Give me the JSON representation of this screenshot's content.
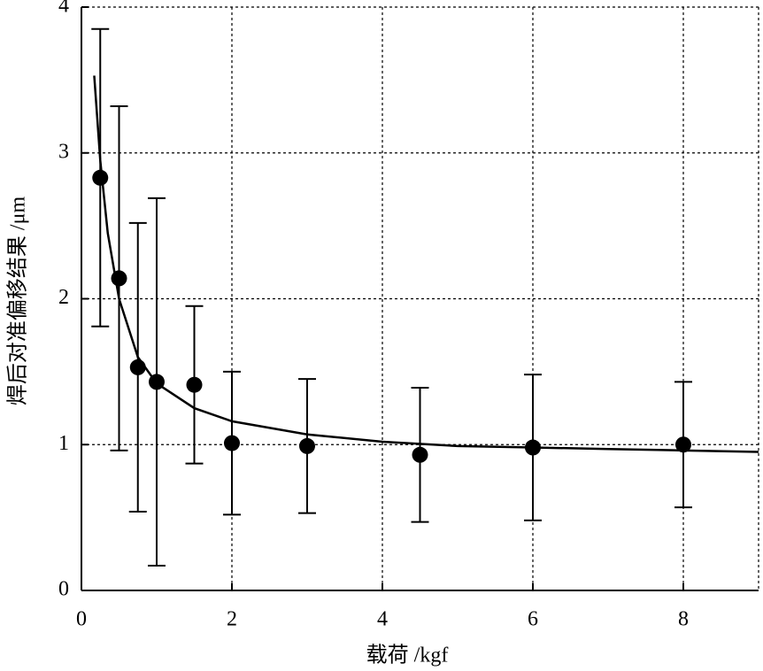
{
  "chart_data": {
    "type": "scatter",
    "x_label": "载荷 /kgf",
    "y_label": "焊后对准偏移结果 /μm",
    "x": [
      0.25,
      0.5,
      0.75,
      1,
      1.5,
      2,
      3,
      4.5,
      6,
      8
    ],
    "values": [
      2.83,
      2.14,
      1.53,
      1.43,
      1.41,
      1.01,
      0.99,
      0.93,
      0.98,
      1.0
    ],
    "errors": [
      1.02,
      1.18,
      0.99,
      1.26,
      0.54,
      0.49,
      0.46,
      0.46,
      0.5,
      0.43
    ],
    "color": "#000000",
    "fit": {
      "x": [
        0.17,
        0.25,
        0.35,
        0.5,
        0.75,
        1,
        1.5,
        2,
        3,
        4,
        5,
        6,
        7,
        8,
        9
      ],
      "y": [
        3.53,
        2.95,
        2.45,
        2.0,
        1.6,
        1.42,
        1.25,
        1.16,
        1.07,
        1.02,
        0.99,
        0.98,
        0.97,
        0.96,
        0.95
      ]
    },
    "xlim": [
      0,
      9
    ],
    "ylim": [
      0,
      4
    ],
    "xticks": [
      0,
      2,
      4,
      6,
      8
    ],
    "yticks": [
      0,
      1,
      2,
      3,
      4
    ],
    "grid": true
  }
}
